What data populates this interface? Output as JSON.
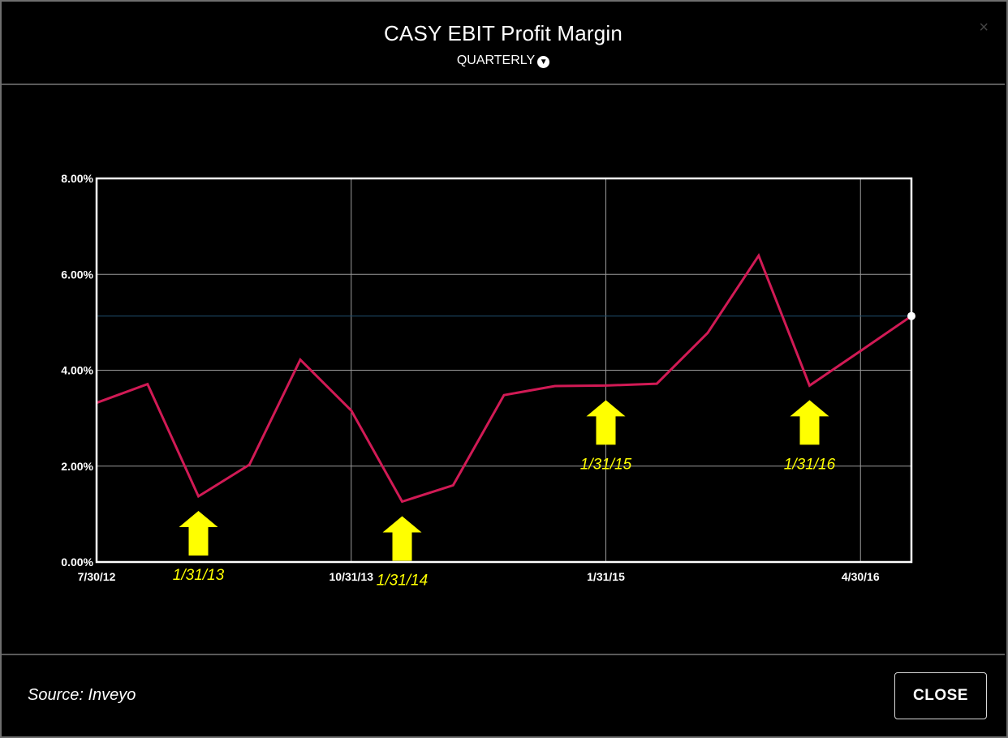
{
  "header": {
    "title": "CASY EBIT Profit Margin",
    "period_label": "QUARTERLY",
    "close_x": "×"
  },
  "footer": {
    "source": "Source: Inveyo",
    "close_label": "CLOSE"
  },
  "colors": {
    "background": "#000000",
    "line": "#d11a55",
    "annotation": "#ffff00",
    "reference_line": "#1f4f6f",
    "grid": "#9a9a9a"
  },
  "chart_data": {
    "type": "line",
    "title": "CASY EBIT Profit Margin",
    "xlabel": "",
    "ylabel": "",
    "ylim": [
      0,
      8
    ],
    "yticks": [
      "0.00%",
      "2.00%",
      "4.00%",
      "6.00%",
      "8.00%"
    ],
    "x_tick_labels": [
      "7/30/12",
      "10/31/13",
      "1/31/15",
      "4/30/16"
    ],
    "x": [
      "7/30/12",
      "10/31/12",
      "1/31/13",
      "4/30/13",
      "7/31/13",
      "10/31/13",
      "1/31/14",
      "4/30/14",
      "7/31/14",
      "10/31/14",
      "1/31/15",
      "4/30/15",
      "7/31/15",
      "10/31/15",
      "1/31/16",
      "4/30/16",
      "7/31/16"
    ],
    "series": [
      {
        "values": [
          3.32,
          3.71,
          1.37,
          2.03,
          4.22,
          3.16,
          1.26,
          1.6,
          3.48,
          3.67,
          3.68,
          3.72,
          4.78,
          6.39,
          3.68,
          4.4,
          5.13
        ]
      }
    ],
    "reference_line": 5.13,
    "grid": true,
    "annotations": [
      {
        "label": "1/31/13",
        "x": "1/31/13",
        "arrow": "up",
        "position": "below"
      },
      {
        "label": "1/31/14",
        "x": "1/31/14",
        "arrow": "up",
        "position": "below"
      },
      {
        "label": "1/31/15",
        "x": "1/31/15",
        "arrow": "up",
        "position": "below"
      },
      {
        "label": "1/31/16",
        "x": "1/31/16",
        "arrow": "up",
        "position": "below"
      }
    ]
  }
}
